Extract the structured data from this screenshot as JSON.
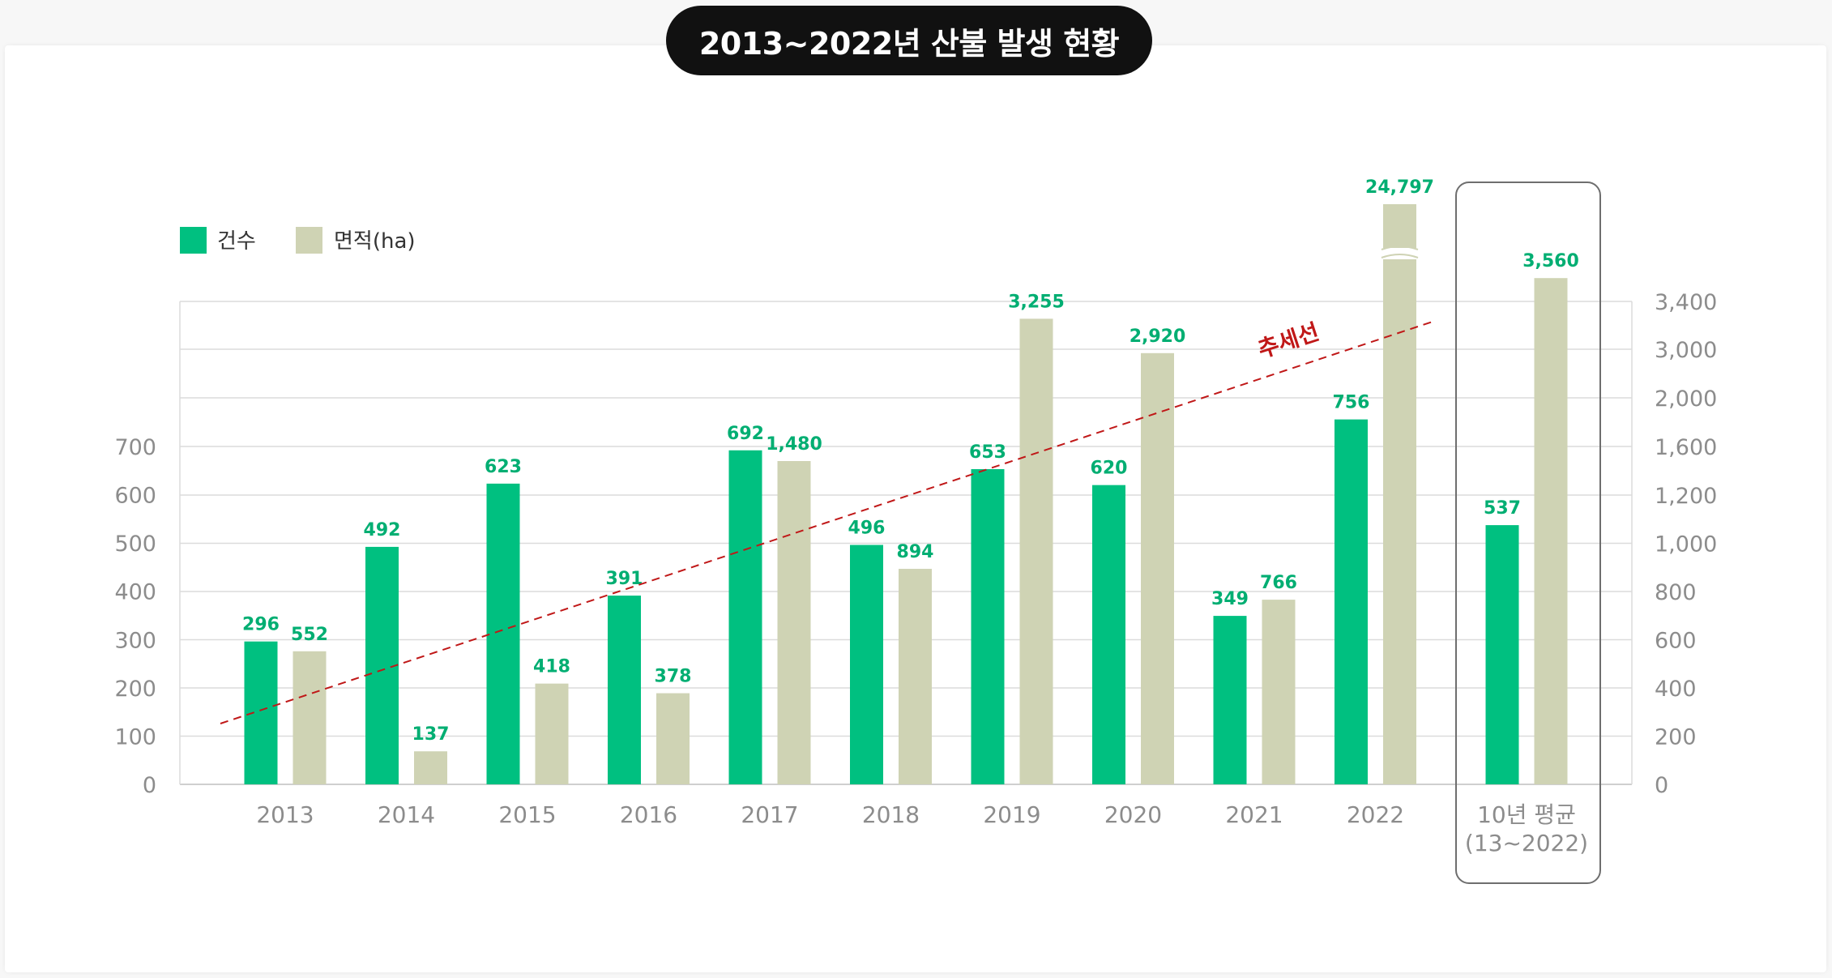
{
  "title": "2013~2022년 산불 발생 현황",
  "colors": {
    "count": "#00c080",
    "area": "#cfd3b4",
    "label": "#00ae72",
    "trend": "#c01818",
    "grid": "#dcdcdc",
    "axis_text": "#8c8c8c"
  },
  "chart_data": {
    "type": "bar",
    "title": "2013~2022년 산불 발생 현황",
    "categories": [
      "2013",
      "2014",
      "2015",
      "2016",
      "2017",
      "2018",
      "2019",
      "2020",
      "2021",
      "2022"
    ],
    "average_category": [
      "10년 평균",
      "(13~2022)"
    ],
    "legend_placement": "top-left",
    "grid": true,
    "series": [
      {
        "name": "건수",
        "axis": "left",
        "values": [
          296,
          492,
          623,
          391,
          692,
          496,
          653,
          620,
          349,
          756
        ],
        "labels": [
          "296",
          "492",
          "623",
          "391",
          "692",
          "496",
          "653",
          "620",
          "349",
          "756"
        ],
        "average": 537,
        "average_label": "537"
      },
      {
        "name": "면적(ha)",
        "axis": "right",
        "values": [
          552,
          137,
          418,
          378,
          1480,
          894,
          3255,
          2920,
          766,
          24797
        ],
        "labels": [
          "552",
          "137",
          "418",
          "378",
          "1,480",
          "894",
          "3,255",
          "2,920",
          "766",
          "24,797"
        ],
        "average": 3560,
        "average_label": "3,560",
        "axis_break_for": "24,797"
      }
    ],
    "left_axis": {
      "ticks": [
        "0",
        "100",
        "200",
        "300",
        "400",
        "500",
        "600",
        "700"
      ]
    },
    "right_axis": {
      "ticks": [
        "0",
        "200",
        "400",
        "600",
        "800",
        "1,000",
        "1,200",
        "1,600",
        "2,000",
        "3,000",
        "3,400"
      ],
      "scale": "piecewise"
    },
    "trendline": {
      "label": "추세선",
      "style": "dashed"
    }
  }
}
